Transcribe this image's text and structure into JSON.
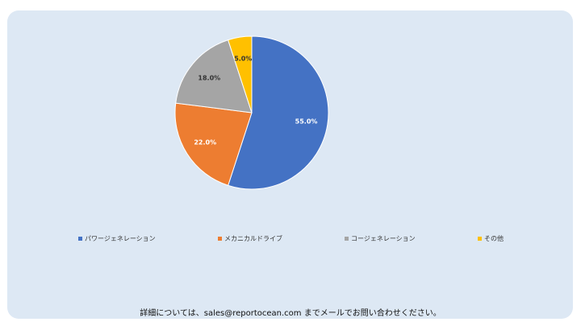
{
  "chart_data": {
    "type": "pie",
    "categories": [
      "パワージェネレーション",
      "メカニカルドライブ",
      "コージェネレーション",
      "その他"
    ],
    "values": [
      55.0,
      22.0,
      18.0,
      5.0
    ],
    "labels": [
      "55.0%",
      "22.0%",
      "18.0%",
      "5.0%"
    ],
    "colors": [
      "#4472c4",
      "#ed7d31",
      "#a5a5a5",
      "#ffc000"
    ],
    "title": "",
    "legend_position": "bottom"
  },
  "footer_text": "詳細については、sales@reportocean.com までメールでお問い合わせください。"
}
